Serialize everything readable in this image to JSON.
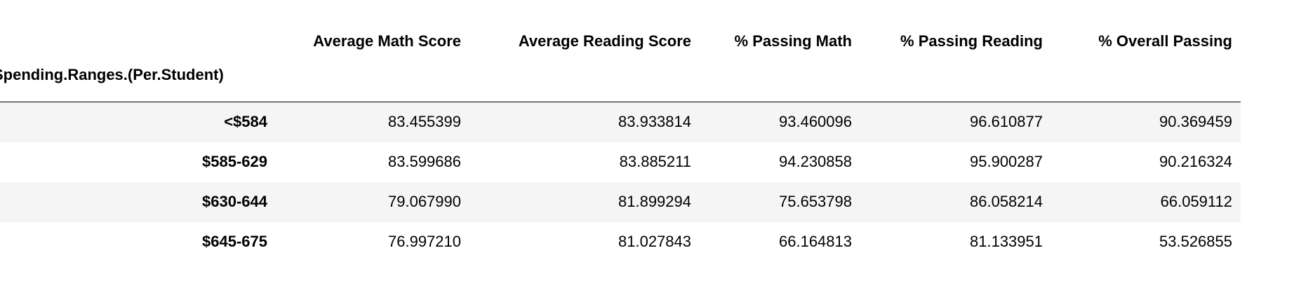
{
  "table": {
    "index_name": "Spending.Ranges.(Per.Student)",
    "columns": [
      "Average Math Score",
      "Average Reading Score",
      "% Passing Math",
      "% Passing Reading",
      "% Overall Passing"
    ],
    "rows": [
      {
        "index": "<$584",
        "values": [
          "83.455399",
          "83.933814",
          "93.460096",
          "96.610877",
          "90.369459"
        ]
      },
      {
        "index": "$585-629",
        "values": [
          "83.599686",
          "83.885211",
          "94.230858",
          "95.900287",
          "90.216324"
        ]
      },
      {
        "index": "$630-644",
        "values": [
          "79.067990",
          "81.899294",
          "75.653798",
          "86.058214",
          "66.059112"
        ]
      },
      {
        "index": "$645-675",
        "values": [
          "76.997210",
          "81.027843",
          "66.164813",
          "81.133951",
          "53.526855"
        ]
      }
    ]
  }
}
